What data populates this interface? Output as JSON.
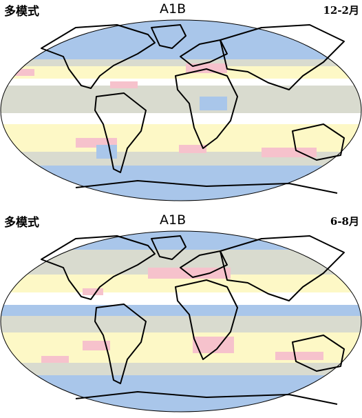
{
  "colors": {
    "blue": "#a9c6ea",
    "gray": "#d9dbcf",
    "yellow": "#fdf8c6",
    "pink": "#f6c2cc",
    "white": "#ffffff",
    "coast": "#000000"
  },
  "panels": [
    {
      "left_label": "多模式",
      "center_label": "A1B",
      "right_label": "12-2月"
    },
    {
      "left_label": "多模式",
      "center_label": "A1B",
      "right_label": "6-8月"
    }
  ]
}
